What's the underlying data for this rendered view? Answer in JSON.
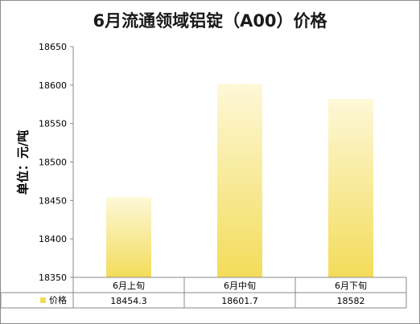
{
  "chart_data": {
    "type": "bar",
    "title": "6月流通领域铝锭（A00）价格",
    "ylabel": "单位：元/吨",
    "categories": [
      "6月上旬",
      "6月中旬",
      "6月下旬"
    ],
    "series": [
      {
        "name": "价格",
        "values": [
          18454.3,
          18601.7,
          18582
        ]
      }
    ],
    "data_table_values": [
      "18454.3",
      "18601.7",
      "18582"
    ],
    "ylim": [
      18350,
      18650
    ],
    "yticks": [
      18350,
      18400,
      18450,
      18500,
      18550,
      18600,
      18650
    ],
    "grid": false,
    "legend": "data-table",
    "colors": {
      "bar_top": "#fdf8d8",
      "bar_bottom": "#f3dc5a",
      "axis": "#898989"
    }
  }
}
